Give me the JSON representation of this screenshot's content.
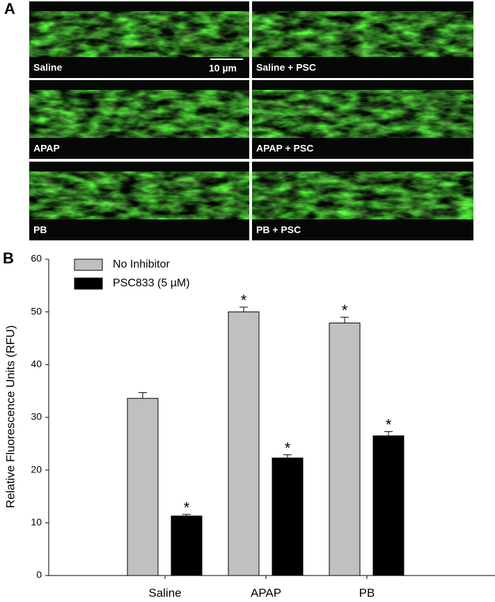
{
  "panel_a": {
    "label": "A",
    "images": [
      {
        "label": "Saline"
      },
      {
        "label": "Saline + PSC"
      },
      {
        "label": "APAP"
      },
      {
        "label": "APAP + PSC"
      },
      {
        "label": "PB"
      },
      {
        "label": "PB + PSC"
      }
    ],
    "scale_bar": "10 µm"
  },
  "panel_b_label": "B",
  "chart_data": {
    "type": "bar",
    "y_label": "Relative Fluorescence Units (RFU)",
    "categories": [
      "Saline",
      "APAP",
      "PB"
    ],
    "series": [
      {
        "name": "No Inhibitor",
        "color": "#c0c0c0",
        "values": [
          33.6,
          50.0,
          47.9
        ],
        "errors": [
          1.1,
          0.9,
          1.1
        ],
        "significance": [
          null,
          "*",
          "*"
        ]
      },
      {
        "name": "PSC833 (5 µM)",
        "color": "#000000",
        "values": [
          11.3,
          22.3,
          26.5
        ],
        "errors": [
          0.3,
          0.6,
          0.8
        ],
        "significance": [
          "*",
          "*",
          "*"
        ]
      }
    ],
    "ylim": [
      0,
      60
    ],
    "yticks": [
      0,
      10,
      20,
      30,
      40,
      50,
      60
    ],
    "legend": "top-left",
    "grid": false
  }
}
